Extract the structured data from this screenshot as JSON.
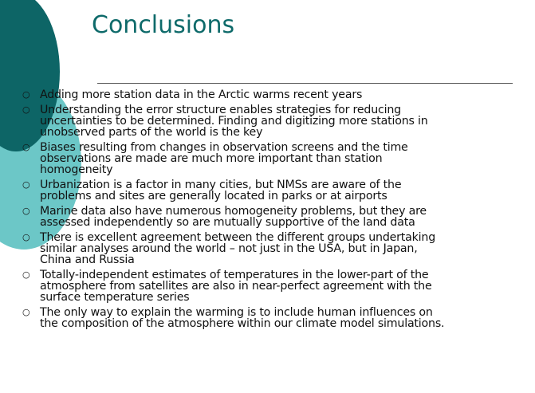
{
  "title": "Conclusions",
  "bullets": [
    [
      "Adding more station data in the Arctic warms recent years"
    ],
    [
      "Understanding the error structure enables strategies for reducing",
      "uncertainties to be determined. Finding and digitizing more stations in",
      "unobserved parts of the world is the key"
    ],
    [
      "Biases resulting from changes in observation screens and the time",
      "observations are made are much more important than station",
      "homogeneity"
    ],
    [
      "Urbanization is a factor in many cities, but NMSs are aware of the",
      "problems and sites are generally located in parks or at airports"
    ],
    [
      "Marine data also have numerous homogeneity problems, but they are",
      "assessed independently so are mutually supportive of the land data"
    ],
    [
      "There is excellent agreement between the different groups undertaking",
      "similar analyses around the world – not just in the USA, but in Japan,",
      "China and Russia"
    ],
    [
      "Totally-independent estimates of temperatures in the lower-part of the",
      "atmosphere from satellites are also in near-perfect agreement with the",
      "surface temperature series"
    ],
    [
      "The only way to explain the warming is to include human influences on",
      "the composition of the atmosphere within our climate model simulations."
    ]
  ]
}
